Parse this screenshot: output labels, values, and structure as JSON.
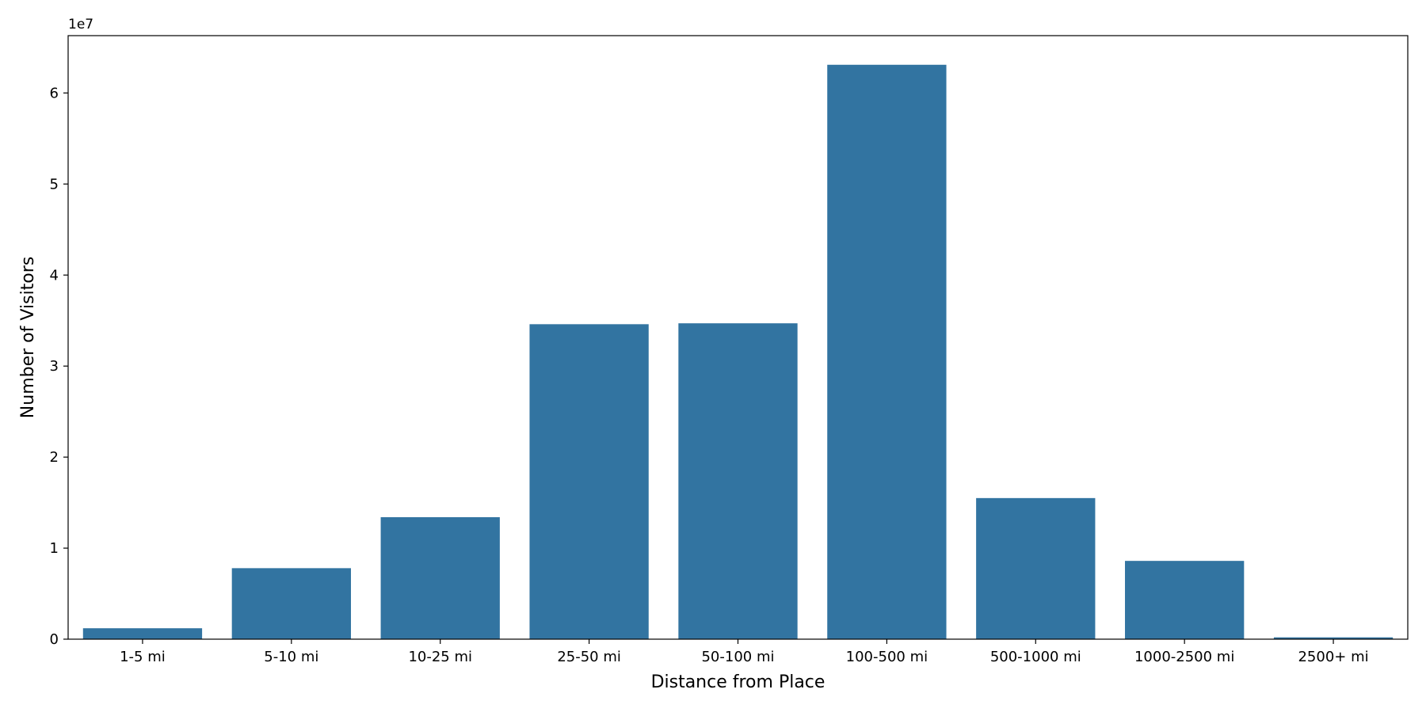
{
  "chart_data": {
    "type": "bar",
    "title": "",
    "xlabel": "Distance from Place",
    "ylabel": "Number of Visitors",
    "offset_label": "1e7",
    "scale": 10000000,
    "categories": [
      "1-5 mi",
      "5-10 mi",
      "10-25 mi",
      "25-50 mi",
      "50-100 mi",
      "100-500 mi",
      "500-1000 mi",
      "1000-2500 mi",
      "2500+ mi"
    ],
    "values": [
      1200000,
      7800000,
      13400000,
      34600000,
      34700000,
      63100000,
      15500000,
      8600000,
      200000
    ],
    "ylim": [
      0,
      66300000
    ],
    "yticks": [
      0,
      10000000,
      20000000,
      30000000,
      40000000,
      50000000,
      60000000
    ],
    "ytick_labels": [
      "0",
      "1",
      "2",
      "3",
      "4",
      "5",
      "6"
    ],
    "bar_color": "#3274a1",
    "grid": false,
    "legend": "none"
  }
}
